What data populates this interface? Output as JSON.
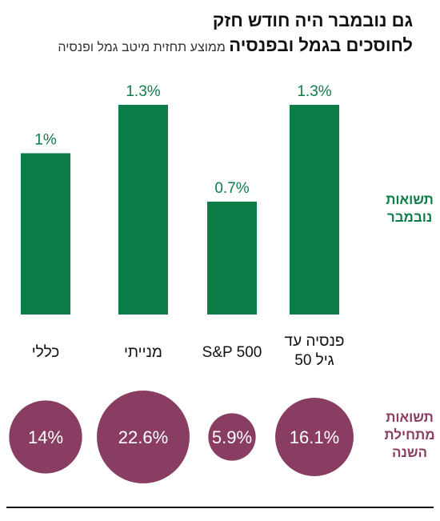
{
  "header": {
    "title": "גם נובמבר היה חודש חזק",
    "subtitle_bold": "לחוסכים בגמל ובפנסיה",
    "subtitle_light": "ממוצע תחזית מיטב גמל ופנסיה"
  },
  "side_labels": {
    "monthly": [
      "תשואות",
      "נובמבר"
    ],
    "ytd": [
      "תשואות",
      "מתחילת",
      "השנה"
    ]
  },
  "colors": {
    "green": "#0d7d47",
    "maroon": "#8a3d62",
    "text": "#111111"
  },
  "chart_data": {
    "type": "bar",
    "title": "גם נובמבר היה חודש חזק",
    "categories": [
      [
        "כללי"
      ],
      [
        "מנייתי"
      ],
      [
        "S&P 500"
      ],
      [
        "פנסיה עד",
        "גיל 50"
      ]
    ],
    "series": [
      {
        "name": "תשואות נובמבר",
        "values": [
          1.0,
          1.3,
          0.7,
          1.3
        ],
        "labels": [
          "1%",
          "1.3%",
          "0.7%",
          "1.3%"
        ]
      },
      {
        "name": "תשואות מתחילת השנה",
        "values": [
          14.0,
          22.6,
          5.9,
          16.1
        ],
        "labels": [
          "14%",
          "22.6%",
          "5.9%",
          "16.1%"
        ],
        "mark": "circle"
      }
    ],
    "ylim": [
      0,
      1.3
    ],
    "grid": false,
    "legend": "right"
  }
}
